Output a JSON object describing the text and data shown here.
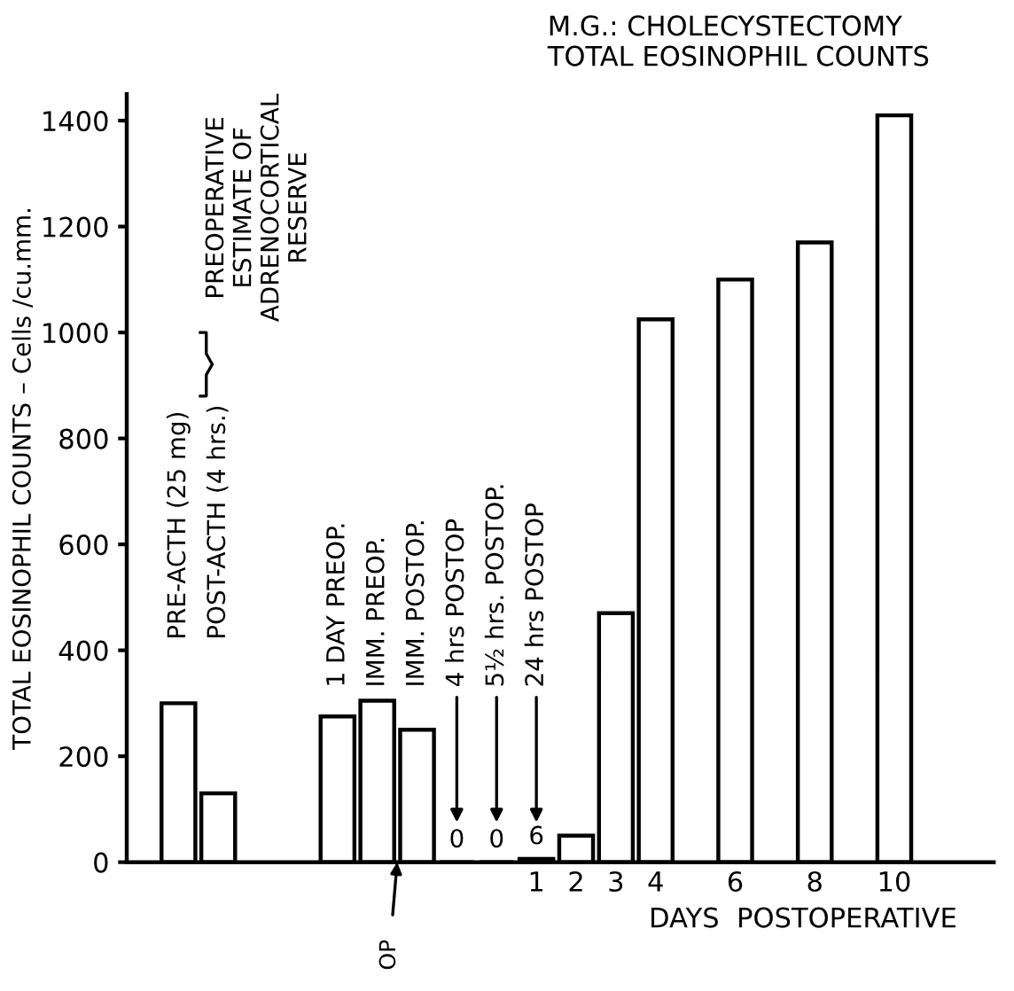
{
  "chart_data": {
    "type": "bar",
    "title": "M.G.: CHOLECYSTECTOMY\nTOTAL EOSINOPHIL COUNTS",
    "ylabel": "TOTAL EOSINOPHIL COUNTS – Cells /cu.mm.",
    "xlabel": "DAYS  POSTOPERATIVE",
    "categories": [
      null,
      null,
      null,
      null,
      null,
      null,
      null,
      null,
      null,
      "1",
      "2",
      "3",
      "4",
      null,
      "6",
      null,
      "8",
      null,
      "10"
    ],
    "series": [
      {
        "color": "#ffffff",
        "values": [
          300,
          130,
          null,
          null,
          275,
          305,
          250,
          0,
          0,
          6,
          50,
          470,
          1025,
          null,
          1100,
          null,
          1170,
          null,
          1410
        ],
        "value_labels": [
          null,
          null,
          null,
          null,
          null,
          null,
          null,
          "0",
          "0",
          "6",
          null,
          null,
          null,
          null,
          null,
          null,
          null,
          null,
          null
        ]
      }
    ],
    "ylim": [
      0,
      1450
    ],
    "yticks": [
      0,
      200,
      400,
      600,
      800,
      1000,
      1200,
      1400
    ],
    "grid": false,
    "legend": false,
    "annotations": [
      "PRE-ACTH (25 mg)",
      "POST-ACTH (4 hrs.)",
      "PREOPERATIVE\nESTIMATE OF\nADRENOCORTICAL\nRESERVE",
      "1 DAY PREOP.",
      "IMM. PREOP.",
      "IMM. POSTOP.",
      "4 hrs POSTOP",
      "5½ hrs. POSTOP.",
      "24 hrs POSTOP",
      "OP"
    ]
  }
}
